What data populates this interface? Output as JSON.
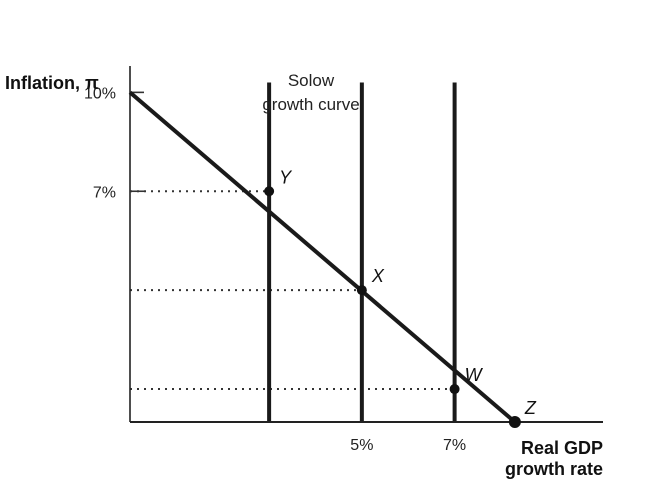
{
  "chart_data": {
    "type": "line",
    "ylabel": "Inflation, π",
    "xlabel_line1": "Real GDP",
    "xlabel_line2": "growth rate",
    "annotation_line1": "Solow",
    "annotation_line2": "growth curve",
    "xlim": [
      0,
      10.2
    ],
    "ylim": [
      0,
      10.8
    ],
    "y_ticks": [
      {
        "value": 10,
        "label": "10%"
      },
      {
        "value": 7,
        "label": "7%"
      }
    ],
    "x_ticks": [
      {
        "value": 5,
        "label": "5%"
      },
      {
        "value": 7,
        "label": "7%"
      }
    ],
    "vertical_lines_x": [
      3,
      5,
      7
    ],
    "vertical_lines_top_y": 10.3,
    "series": [
      {
        "x": [
          0,
          8.3
        ],
        "y": [
          10,
          0
        ]
      }
    ],
    "points": [
      {
        "label": "Y",
        "x": 3,
        "y": 7,
        "marker": true
      },
      {
        "label": "X",
        "x": 5,
        "y": 4,
        "marker": true
      },
      {
        "label": "W",
        "x": 7,
        "y": 1,
        "marker": true
      },
      {
        "label": "Z",
        "x": 8.3,
        "y": 0,
        "marker": true
      }
    ],
    "dotted_guides_y": [
      7,
      4,
      1
    ],
    "grid": false
  }
}
